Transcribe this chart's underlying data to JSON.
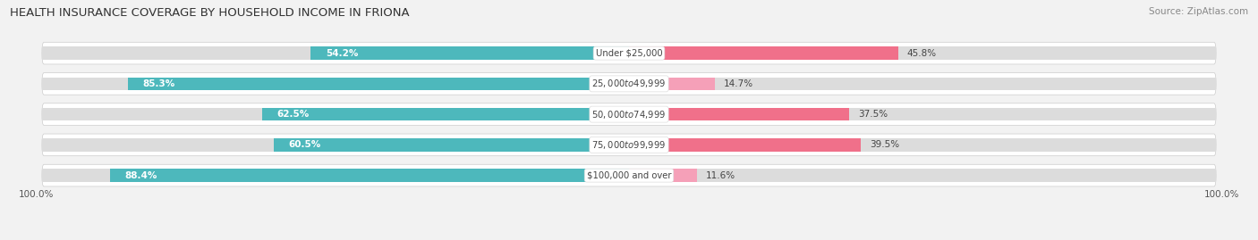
{
  "title": "HEALTH INSURANCE COVERAGE BY HOUSEHOLD INCOME IN FRIONA",
  "source": "Source: ZipAtlas.com",
  "categories": [
    "Under $25,000",
    "$25,000 to $49,999",
    "$50,000 to $74,999",
    "$75,000 to $99,999",
    "$100,000 and over"
  ],
  "with_coverage": [
    54.2,
    85.3,
    62.5,
    60.5,
    88.4
  ],
  "without_coverage": [
    45.8,
    14.7,
    37.5,
    39.5,
    11.6
  ],
  "color_with": "#4db8bc",
  "color_without_dark": "#f0708a",
  "color_without_light": "#f5a0b8",
  "without_dark_rows": [
    0,
    2,
    3
  ],
  "without_light_rows": [
    1,
    4
  ],
  "bg_color": "#f2f2f2",
  "row_bg_color": "#ffffff",
  "bar_bg_color": "#dcdcdc",
  "x_left_label": "100.0%",
  "x_right_label": "100.0%"
}
